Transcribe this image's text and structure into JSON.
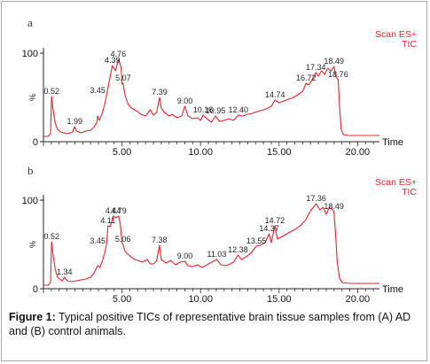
{
  "chart_data": [
    {
      "type": "line",
      "panel_label": "a",
      "scan_label": "Scan ES+",
      "tic_label": "TIC",
      "ylabel": "%",
      "xlabel": "Time",
      "xlim": [
        0,
        21.5
      ],
      "ylim": [
        0,
        100
      ],
      "x_ticks": [
        "5.00",
        "10.00",
        "15.00",
        "20.00"
      ],
      "y_ticks": [
        "0",
        "100"
      ],
      "colors": {
        "trace": "#e8232b",
        "axis": "#222222",
        "label": "#e8232b"
      },
      "series": [
        {
          "points": [
            [
              0.0,
              6
            ],
            [
              0.3,
              6
            ],
            [
              0.45,
              9
            ],
            [
              0.52,
              51
            ],
            [
              0.6,
              38
            ],
            [
              0.75,
              21
            ],
            [
              0.9,
              14
            ],
            [
              1.1,
              11
            ],
            [
              1.3,
              10
            ],
            [
              1.5,
              9
            ],
            [
              1.7,
              10
            ],
            [
              1.85,
              11
            ],
            [
              1.99,
              17
            ],
            [
              2.1,
              12
            ],
            [
              2.4,
              10
            ],
            [
              2.7,
              12
            ],
            [
              3.0,
              13
            ],
            [
              3.2,
              16
            ],
            [
              3.4,
              22
            ],
            [
              3.45,
              29
            ],
            [
              3.55,
              24
            ],
            [
              3.7,
              30
            ],
            [
              3.9,
              42
            ],
            [
              4.1,
              60
            ],
            [
              4.25,
              74
            ],
            [
              4.39,
              86
            ],
            [
              4.5,
              83
            ],
            [
              4.6,
              80
            ],
            [
              4.76,
              93
            ],
            [
              4.85,
              90
            ],
            [
              4.95,
              83
            ],
            [
              5.0,
              65
            ],
            [
              5.07,
              66
            ],
            [
              5.2,
              52
            ],
            [
              5.4,
              42
            ],
            [
              5.6,
              38
            ],
            [
              5.8,
              36
            ],
            [
              6.0,
              34
            ],
            [
              6.2,
              31
            ],
            [
              6.5,
              29
            ],
            [
              6.8,
              36
            ],
            [
              7.0,
              30
            ],
            [
              7.2,
              33
            ],
            [
              7.39,
              50
            ],
            [
              7.5,
              38
            ],
            [
              7.7,
              33
            ],
            [
              8.0,
              29
            ],
            [
              8.2,
              31
            ],
            [
              8.5,
              27
            ],
            [
              8.8,
              29
            ],
            [
              9.0,
              40
            ],
            [
              9.2,
              29
            ],
            [
              9.5,
              26
            ],
            [
              9.8,
              27
            ],
            [
              10.0,
              24
            ],
            [
              10.16,
              30
            ],
            [
              10.4,
              26
            ],
            [
              10.7,
              22
            ],
            [
              10.95,
              29
            ],
            [
              11.2,
              23
            ],
            [
              11.5,
              24
            ],
            [
              11.8,
              26
            ],
            [
              12.1,
              24
            ],
            [
              12.4,
              30
            ],
            [
              12.7,
              29
            ],
            [
              13.0,
              31
            ],
            [
              13.3,
              32
            ],
            [
              13.6,
              34
            ],
            [
              14.0,
              36
            ],
            [
              14.3,
              38
            ],
            [
              14.5,
              40
            ],
            [
              14.74,
              47
            ],
            [
              15.0,
              44
            ],
            [
              15.3,
              46
            ],
            [
              15.6,
              48
            ],
            [
              15.9,
              50
            ],
            [
              16.2,
              53
            ],
            [
              16.5,
              57
            ],
            [
              16.72,
              66
            ],
            [
              16.9,
              64
            ],
            [
              17.1,
              70
            ],
            [
              17.34,
              78
            ],
            [
              17.5,
              74
            ],
            [
              17.7,
              80
            ],
            [
              17.9,
              76
            ],
            [
              18.1,
              83
            ],
            [
              18.3,
              80
            ],
            [
              18.49,
              85
            ],
            [
              18.6,
              74
            ],
            [
              18.76,
              70
            ],
            [
              18.85,
              40
            ],
            [
              18.95,
              14
            ],
            [
              19.1,
              8
            ],
            [
              19.4,
              7
            ],
            [
              20.0,
              7
            ],
            [
              21.0,
              7
            ],
            [
              21.4,
              7
            ]
          ]
        }
      ],
      "peak_labels": [
        {
          "text": "0.52",
          "x": 0.52,
          "y": 51
        },
        {
          "text": "1.99",
          "x": 1.99,
          "y": 17
        },
        {
          "text": "3.45",
          "x": 3.45,
          "y": 52
        },
        {
          "text": "4.39",
          "x": 4.39,
          "y": 86
        },
        {
          "text": "4.76",
          "x": 4.76,
          "y": 93
        },
        {
          "text": "5.07",
          "x": 5.07,
          "y": 66
        },
        {
          "text": "7.39",
          "x": 7.39,
          "y": 50
        },
        {
          "text": "9.00",
          "x": 9.0,
          "y": 40
        },
        {
          "text": "10.16",
          "x": 10.16,
          "y": 30
        },
        {
          "text": "10.95",
          "x": 10.95,
          "y": 29
        },
        {
          "text": "12.40",
          "x": 12.4,
          "y": 30
        },
        {
          "text": "14.74",
          "x": 14.74,
          "y": 47
        },
        {
          "text": "16.72",
          "x": 16.72,
          "y": 66
        },
        {
          "text": "17.34",
          "x": 17.34,
          "y": 78
        },
        {
          "text": "18.49",
          "x": 18.49,
          "y": 85
        },
        {
          "text": "18.76",
          "x": 18.76,
          "y": 70
        }
      ]
    },
    {
      "type": "line",
      "panel_label": "b",
      "scan_label": "Scan ES+",
      "tic_label": "TIC",
      "ylabel": "%",
      "xlabel": "Time",
      "xlim": [
        0,
        21.5
      ],
      "ylim": [
        0,
        100
      ],
      "x_ticks": [
        "5.00",
        "10.00",
        "15.00",
        "20.00"
      ],
      "y_ticks": [
        "0",
        "100"
      ],
      "colors": {
        "trace": "#e8232b",
        "axis": "#222222",
        "label": "#e8232b"
      },
      "series": [
        {
          "points": [
            [
              0.0,
              4
            ],
            [
              0.3,
              4
            ],
            [
              0.45,
              7
            ],
            [
              0.52,
              53
            ],
            [
              0.6,
              40
            ],
            [
              0.75,
              22
            ],
            [
              0.9,
              13
            ],
            [
              1.1,
              10
            ],
            [
              1.2,
              9
            ],
            [
              1.34,
              13
            ],
            [
              1.5,
              9
            ],
            [
              1.8,
              8
            ],
            [
              2.1,
              9
            ],
            [
              2.4,
              10
            ],
            [
              2.7,
              11
            ],
            [
              3.0,
              13
            ],
            [
              3.2,
              17
            ],
            [
              3.45,
              26
            ],
            [
              3.6,
              24
            ],
            [
              3.8,
              34
            ],
            [
              4.0,
              48
            ],
            [
              4.11,
              71
            ],
            [
              4.25,
              70
            ],
            [
              4.44,
              82
            ],
            [
              4.6,
              80
            ],
            [
              4.79,
              82
            ],
            [
              4.9,
              72
            ],
            [
              5.0,
              52
            ],
            [
              5.06,
              50
            ],
            [
              5.2,
              42
            ],
            [
              5.5,
              37
            ],
            [
              5.8,
              33
            ],
            [
              6.0,
              32
            ],
            [
              6.3,
              30
            ],
            [
              6.6,
              33
            ],
            [
              6.8,
              28
            ],
            [
              7.0,
              28
            ],
            [
              7.2,
              31
            ],
            [
              7.38,
              49
            ],
            [
              7.5,
              33
            ],
            [
              7.8,
              29
            ],
            [
              8.1,
              32
            ],
            [
              8.4,
              27
            ],
            [
              8.7,
              30
            ],
            [
              9.0,
              31
            ],
            [
              9.2,
              26
            ],
            [
              9.5,
              25
            ],
            [
              9.8,
              27
            ],
            [
              10.1,
              24
            ],
            [
              10.5,
              28
            ],
            [
              11.03,
              33
            ],
            [
              11.3,
              27
            ],
            [
              11.6,
              26
            ],
            [
              11.9,
              28
            ],
            [
              12.1,
              30
            ],
            [
              12.38,
              38
            ],
            [
              12.6,
              33
            ],
            [
              12.9,
              36
            ],
            [
              13.2,
              40
            ],
            [
              13.55,
              48
            ],
            [
              13.8,
              49
            ],
            [
              14.1,
              52
            ],
            [
              14.37,
              62
            ],
            [
              14.5,
              52
            ],
            [
              14.72,
              71
            ],
            [
              14.9,
              56
            ],
            [
              15.2,
              59
            ],
            [
              15.5,
              62
            ],
            [
              15.8,
              65
            ],
            [
              16.1,
              68
            ],
            [
              16.4,
              72
            ],
            [
              16.7,
              78
            ],
            [
              17.0,
              88
            ],
            [
              17.36,
              96
            ],
            [
              17.6,
              89
            ],
            [
              17.8,
              92
            ],
            [
              18.0,
              84
            ],
            [
              18.2,
              92
            ],
            [
              18.35,
              90
            ],
            [
              18.49,
              87
            ],
            [
              18.6,
              60
            ],
            [
              18.7,
              30
            ],
            [
              18.85,
              12
            ],
            [
              19.0,
              7
            ],
            [
              19.5,
              6
            ],
            [
              20.5,
              6
            ],
            [
              21.4,
              6
            ]
          ]
        }
      ],
      "peak_labels": [
        {
          "text": "0.52",
          "x": 0.52,
          "y": 53
        },
        {
          "text": "1.34",
          "x": 1.34,
          "y": 13
        },
        {
          "text": "3.45",
          "x": 3.45,
          "y": 48
        },
        {
          "text": "4.11",
          "x": 4.11,
          "y": 71
        },
        {
          "text": "4.44",
          "x": 4.44,
          "y": 82
        },
        {
          "text": "4.79",
          "x": 4.79,
          "y": 82
        },
        {
          "text": "5.06",
          "x": 5.06,
          "y": 50
        },
        {
          "text": "7.38",
          "x": 7.38,
          "y": 49
        },
        {
          "text": "9.00",
          "x": 9.0,
          "y": 31
        },
        {
          "text": "11.03",
          "x": 11.03,
          "y": 33
        },
        {
          "text": "12.38",
          "x": 12.38,
          "y": 38
        },
        {
          "text": "13.55",
          "x": 13.55,
          "y": 48
        },
        {
          "text": "14.37",
          "x": 14.37,
          "y": 62
        },
        {
          "text": "14.72",
          "x": 14.72,
          "y": 71
        },
        {
          "text": "17.36",
          "x": 17.36,
          "y": 96
        },
        {
          "text": "18.49",
          "x": 18.49,
          "y": 87
        }
      ]
    }
  ],
  "caption": {
    "label": "Figure 1:",
    "text": " Typical positive TICs of representative brain tissue samples from (A) AD and (B) control animals."
  }
}
